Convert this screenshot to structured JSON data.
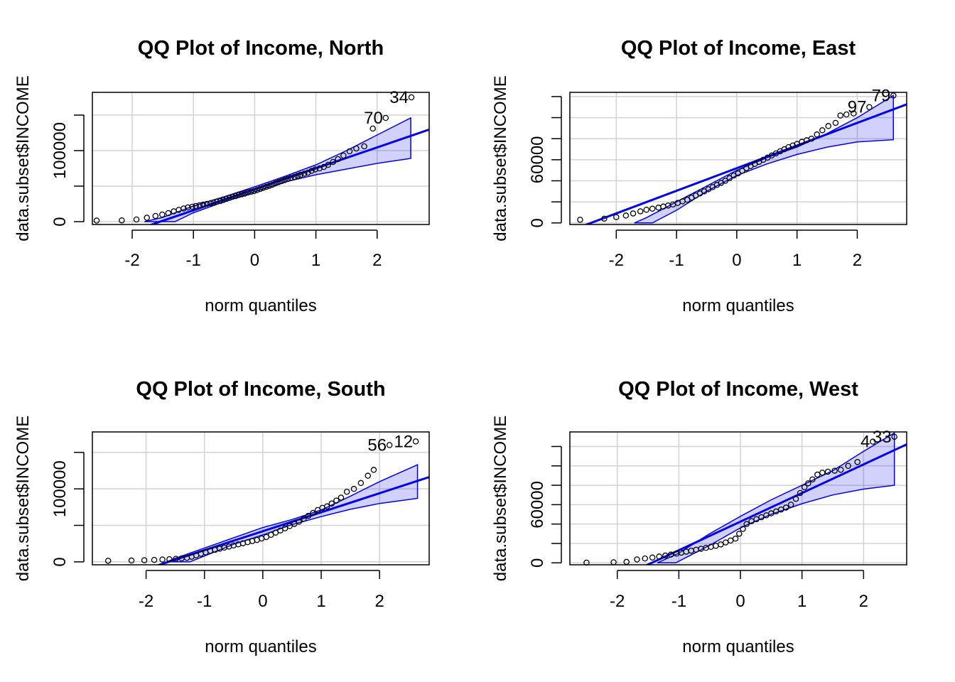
{
  "chart_data": [
    {
      "type": "scatter",
      "title": "QQ Plot of Income, North",
      "xlabel": "norm quantiles",
      "ylabel": "data.subset$INCOME",
      "xlim": [
        -2.65,
        2.85
      ],
      "ylim": [
        -4000,
        182000
      ],
      "xticks": [
        -2,
        -1,
        0,
        1,
        2
      ],
      "xtick_labels": [
        "-2",
        "-1",
        "0",
        "1",
        "2"
      ],
      "yticks": [
        0,
        50000,
        100000,
        150000
      ],
      "ytick_labels": [
        "0",
        "",
        "100000",
        ""
      ],
      "grid": true,
      "reference_line": {
        "intercept": 45500,
        "slope": 29500
      },
      "band": {
        "lower": [
          [
            -1.3,
            0
          ],
          [
            -1,
            12500
          ],
          [
            -0.5,
            28000
          ],
          [
            0,
            42000
          ],
          [
            0.5,
            56000
          ],
          [
            1,
            66000
          ],
          [
            1.5,
            74000
          ],
          [
            2,
            82000
          ],
          [
            2.55,
            89000
          ]
        ],
        "upper": [
          [
            -1.8,
            0
          ],
          [
            -1.5,
            6000
          ],
          [
            -1,
            22000
          ],
          [
            -0.5,
            35000
          ],
          [
            0,
            49000
          ],
          [
            0.5,
            64000
          ],
          [
            1,
            80000
          ],
          [
            1.5,
            100000
          ],
          [
            2,
            122000
          ],
          [
            2.55,
            146000
          ]
        ]
      },
      "points": [
        [
          -2.58,
          1500
        ],
        [
          -2.17,
          1800
        ],
        [
          -1.93,
          3000
        ],
        [
          -1.76,
          5500
        ],
        [
          -1.62,
          8000
        ],
        [
          -1.51,
          10000
        ],
        [
          -1.41,
          12000
        ],
        [
          -1.32,
          14500
        ],
        [
          -1.24,
          16500
        ],
        [
          -1.16,
          18500
        ],
        [
          -1.09,
          20000
        ],
        [
          -1.02,
          21000
        ],
        [
          -0.96,
          22000
        ],
        [
          -0.9,
          23000
        ],
        [
          -0.84,
          24000
        ],
        [
          -0.78,
          25000
        ],
        [
          -0.72,
          26000
        ],
        [
          -0.67,
          27000
        ],
        [
          -0.62,
          28000
        ],
        [
          -0.56,
          29000
        ],
        [
          -0.51,
          30500
        ],
        [
          -0.46,
          32000
        ],
        [
          -0.41,
          33500
        ],
        [
          -0.36,
          35000
        ],
        [
          -0.31,
          36000
        ],
        [
          -0.26,
          37500
        ],
        [
          -0.21,
          38500
        ],
        [
          -0.16,
          39500
        ],
        [
          -0.11,
          41000
        ],
        [
          -0.06,
          42000
        ],
        [
          -0.01,
          43000
        ],
        [
          0.04,
          44500
        ],
        [
          0.09,
          46000
        ],
        [
          0.14,
          47500
        ],
        [
          0.19,
          49000
        ],
        [
          0.24,
          50500
        ],
        [
          0.29,
          52000
        ],
        [
          0.34,
          54000
        ],
        [
          0.39,
          55500
        ],
        [
          0.44,
          57000
        ],
        [
          0.49,
          58500
        ],
        [
          0.54,
          60000
        ],
        [
          0.59,
          61500
        ],
        [
          0.65,
          63000
        ],
        [
          0.7,
          64500
        ],
        [
          0.75,
          66000
        ],
        [
          0.81,
          67500
        ],
        [
          0.87,
          69000
        ],
        [
          0.93,
          71500
        ],
        [
          0.99,
          73500
        ],
        [
          1.06,
          75000
        ],
        [
          1.13,
          77000
        ],
        [
          1.2,
          80000
        ],
        [
          1.28,
          84000
        ],
        [
          1.36,
          88000
        ],
        [
          1.45,
          93000
        ],
        [
          1.55,
          99000
        ],
        [
          1.66,
          103000
        ],
        [
          1.79,
          106000
        ],
        [
          1.93,
          131000
        ],
        [
          2.14,
          146000
        ],
        [
          2.56,
          175000
        ]
      ],
      "annotations": [
        {
          "label": "70",
          "x": 2.14,
          "y": 146000
        },
        {
          "label": "34",
          "x": 2.56,
          "y": 175000
        }
      ]
    },
    {
      "type": "scatter",
      "title": "QQ Plot of Income, East",
      "xlabel": "norm quantiles",
      "ylabel": "data.subset$INCOME",
      "xlim": [
        -2.77,
        2.82
      ],
      "ylim": [
        -1500,
        124000
      ],
      "xticks": [
        -2,
        -1,
        0,
        1,
        2
      ],
      "xtick_labels": [
        "-2",
        "-1",
        "0",
        "1",
        "2"
      ],
      "yticks": [
        0,
        20000,
        40000,
        60000,
        80000,
        100000,
        120000
      ],
      "ytick_labels": [
        "0",
        "",
        "",
        "60000",
        "",
        "",
        ""
      ],
      "grid": true,
      "reference_line": {
        "intercept": 52000,
        "slope": 21500
      },
      "band": {
        "lower": [
          [
            -1.4,
            0
          ],
          [
            -1,
            12000
          ],
          [
            -0.5,
            30000
          ],
          [
            0,
            45000
          ],
          [
            0.5,
            56000
          ],
          [
            1,
            65000
          ],
          [
            1.5,
            72000
          ],
          [
            2,
            77000
          ],
          [
            2.6,
            79000
          ]
        ],
        "upper": [
          [
            -1.7,
            0
          ],
          [
            -1.5,
            5000
          ],
          [
            -1,
            20000
          ],
          [
            -0.5,
            35000
          ],
          [
            0,
            50000
          ],
          [
            0.5,
            62000
          ],
          [
            1,
            72000
          ],
          [
            1.5,
            85000
          ],
          [
            2,
            100000
          ],
          [
            2.6,
            121000
          ]
        ]
      },
      "points": [
        [
          -2.6,
          3000
        ],
        [
          -2.2,
          4000
        ],
        [
          -2.0,
          5500
        ],
        [
          -1.84,
          7000
        ],
        [
          -1.72,
          9000
        ],
        [
          -1.6,
          11000
        ],
        [
          -1.5,
          12500
        ],
        [
          -1.4,
          13500
        ],
        [
          -1.3,
          14500
        ],
        [
          -1.22,
          15500
        ],
        [
          -1.14,
          16500
        ],
        [
          -1.06,
          17500
        ],
        [
          -0.98,
          19000
        ],
        [
          -0.9,
          20500
        ],
        [
          -0.82,
          22000
        ],
        [
          -0.75,
          24000
        ],
        [
          -0.68,
          26000
        ],
        [
          -0.61,
          28000
        ],
        [
          -0.54,
          30000
        ],
        [
          -0.47,
          32000
        ],
        [
          -0.4,
          34000
        ],
        [
          -0.33,
          36000
        ],
        [
          -0.26,
          38000
        ],
        [
          -0.19,
          40000
        ],
        [
          -0.12,
          42500
        ],
        [
          -0.05,
          45000
        ],
        [
          0.02,
          47000
        ],
        [
          0.09,
          49500
        ],
        [
          0.16,
          52000
        ],
        [
          0.23,
          54000
        ],
        [
          0.3,
          56000
        ],
        [
          0.37,
          58000
        ],
        [
          0.44,
          60000
        ],
        [
          0.51,
          62000
        ],
        [
          0.58,
          64000
        ],
        [
          0.65,
          66000
        ],
        [
          0.72,
          68000
        ],
        [
          0.79,
          70000
        ],
        [
          0.86,
          72000
        ],
        [
          0.93,
          73500
        ],
        [
          1.0,
          75000
        ],
        [
          1.08,
          77000
        ],
        [
          1.16,
          78500
        ],
        [
          1.24,
          80000
        ],
        [
          1.33,
          84000
        ],
        [
          1.42,
          88000
        ],
        [
          1.52,
          92000
        ],
        [
          1.64,
          95000
        ],
        [
          1.72,
          102000
        ],
        [
          1.82,
          103000
        ],
        [
          1.94,
          104000
        ],
        [
          2.2,
          110000
        ],
        [
          2.6,
          121000
        ]
      ],
      "annotations": [
        {
          "label": "97",
          "x": 2.2,
          "y": 110000
        },
        {
          "label": "79",
          "x": 2.6,
          "y": 121000
        }
      ]
    },
    {
      "type": "scatter",
      "title": "QQ Plot of Income, South",
      "xlabel": "norm quantiles",
      "ylabel": "data.subset$INCOME",
      "xlim": [
        -2.92,
        2.85
      ],
      "ylim": [
        -4000,
        178000
      ],
      "xticks": [
        -2,
        -1,
        0,
        1,
        2
      ],
      "xtick_labels": [
        "-2",
        "-1",
        "0",
        "1",
        "2"
      ],
      "yticks": [
        0,
        50000,
        100000,
        150000
      ],
      "ytick_labels": [
        "0",
        "",
        "100000",
        ""
      ],
      "grid": true,
      "reference_line": {
        "intercept": 42000,
        "slope": 26000
      },
      "band": {
        "lower": [
          [
            -1.25,
            0
          ],
          [
            -1,
            8000
          ],
          [
            -0.5,
            24000
          ],
          [
            0,
            37000
          ],
          [
            0.5,
            51000
          ],
          [
            1,
            62000
          ],
          [
            1.5,
            72000
          ],
          [
            2,
            80000
          ],
          [
            2.65,
            87000
          ]
        ],
        "upper": [
          [
            -1.65,
            0
          ],
          [
            -1.5,
            5000
          ],
          [
            -1,
            19000
          ],
          [
            -0.5,
            33000
          ],
          [
            0,
            47000
          ],
          [
            0.5,
            58000
          ],
          [
            1,
            71000
          ],
          [
            1.5,
            90000
          ],
          [
            2,
            110000
          ],
          [
            2.65,
            133000
          ]
        ]
      },
      "points": [
        [
          -2.65,
          1500
        ],
        [
          -2.25,
          1800
        ],
        [
          -2.03,
          2200
        ],
        [
          -1.86,
          2700
        ],
        [
          -1.72,
          3200
        ],
        [
          -1.6,
          3700
        ],
        [
          -1.49,
          4200
        ],
        [
          -1.39,
          4800
        ],
        [
          -1.3,
          5500
        ],
        [
          -1.22,
          7000
        ],
        [
          -1.14,
          9000
        ],
        [
          -1.06,
          11000
        ],
        [
          -0.98,
          13000
        ],
        [
          -0.9,
          15000
        ],
        [
          -0.82,
          16500
        ],
        [
          -0.74,
          18000
        ],
        [
          -0.66,
          19500
        ],
        [
          -0.58,
          21000
        ],
        [
          -0.5,
          22500
        ],
        [
          -0.42,
          24000
        ],
        [
          -0.34,
          25500
        ],
        [
          -0.26,
          27000
        ],
        [
          -0.18,
          28500
        ],
        [
          -0.1,
          30000
        ],
        [
          -0.02,
          32000
        ],
        [
          0.06,
          34000
        ],
        [
          0.14,
          37000
        ],
        [
          0.22,
          40000
        ],
        [
          0.3,
          43000
        ],
        [
          0.38,
          46000
        ],
        [
          0.46,
          49000
        ],
        [
          0.54,
          52000
        ],
        [
          0.62,
          55000
        ],
        [
          0.7,
          59000
        ],
        [
          0.78,
          63000
        ],
        [
          0.86,
          67000
        ],
        [
          0.94,
          71000
        ],
        [
          1.02,
          74000
        ],
        [
          1.1,
          76000
        ],
        [
          1.18,
          80000
        ],
        [
          1.26,
          84000
        ],
        [
          1.34,
          88000
        ],
        [
          1.44,
          96000
        ],
        [
          1.56,
          100000
        ],
        [
          1.68,
          108000
        ],
        [
          1.8,
          118000
        ],
        [
          1.9,
          126000
        ],
        [
          2.17,
          160000
        ],
        [
          2.62,
          165000
        ]
      ],
      "annotations": [
        {
          "label": "56",
          "x": 2.17,
          "y": 160000
        },
        {
          "label": "12",
          "x": 2.62,
          "y": 165000
        }
      ]
    },
    {
      "type": "scatter",
      "title": "QQ Plot of Income, West",
      "xlabel": "norm quantiles",
      "ylabel": "data.subset$INCOME",
      "xlim": [
        -2.77,
        2.7
      ],
      "ylim": [
        -2000,
        135000
      ],
      "xticks": [
        -2,
        -1,
        0,
        1,
        2
      ],
      "xtick_labels": [
        "-2",
        "-1",
        "0",
        "1",
        "2"
      ],
      "yticks": [
        0,
        20000,
        40000,
        60000,
        80000,
        100000,
        120000
      ],
      "ytick_labels": [
        "0",
        "",
        "",
        "60000",
        "",
        "",
        ""
      ],
      "grid": true,
      "reference_line": {
        "intercept": 42500,
        "slope": 29500
      },
      "band": {
        "lower": [
          [
            -1.05,
            0
          ],
          [
            -0.5,
            18000
          ],
          [
            0,
            36000
          ],
          [
            0.5,
            50000
          ],
          [
            1,
            61000
          ],
          [
            1.5,
            70000
          ],
          [
            2,
            76000
          ],
          [
            2.5,
            80000
          ]
        ],
        "upper": [
          [
            -1.35,
            0
          ],
          [
            -1,
            10000
          ],
          [
            -0.5,
            30000
          ],
          [
            0,
            48000
          ],
          [
            0.5,
            65000
          ],
          [
            1,
            80000
          ],
          [
            1.5,
            95000
          ],
          [
            2,
            115000
          ],
          [
            2.5,
            134000
          ]
        ]
      },
      "points": [
        [
          -2.5,
          200
        ],
        [
          -2.06,
          600
        ],
        [
          -1.85,
          1000
        ],
        [
          -1.68,
          3500
        ],
        [
          -1.55,
          4500
        ],
        [
          -1.43,
          5500
        ],
        [
          -1.32,
          6500
        ],
        [
          -1.22,
          7500
        ],
        [
          -1.13,
          8500
        ],
        [
          -1.04,
          9500
        ],
        [
          -0.96,
          10500
        ],
        [
          -0.88,
          11500
        ],
        [
          -0.8,
          12500
        ],
        [
          -0.72,
          13500
        ],
        [
          -0.64,
          14500
        ],
        [
          -0.56,
          15500
        ],
        [
          -0.48,
          16500
        ],
        [
          -0.4,
          17500
        ],
        [
          -0.32,
          19000
        ],
        [
          -0.24,
          21000
        ],
        [
          -0.16,
          23000
        ],
        [
          -0.08,
          25000
        ],
        [
          -0.02,
          30000
        ],
        [
          0.04,
          35000
        ],
        [
          0.1,
          40000
        ],
        [
          0.18,
          43000
        ],
        [
          0.26,
          45000
        ],
        [
          0.34,
          47000
        ],
        [
          0.42,
          49000
        ],
        [
          0.5,
          51000
        ],
        [
          0.58,
          53000
        ],
        [
          0.66,
          55000
        ],
        [
          0.74,
          57000
        ],
        [
          0.82,
          60000
        ],
        [
          0.9,
          66000
        ],
        [
          0.97,
          72000
        ],
        [
          1.04,
          78000
        ],
        [
          1.1,
          82000
        ],
        [
          1.17,
          86000
        ],
        [
          1.25,
          91000
        ],
        [
          1.33,
          93000
        ],
        [
          1.42,
          94000
        ],
        [
          1.53,
          95000
        ],
        [
          1.63,
          96000
        ],
        [
          1.75,
          100000
        ],
        [
          1.9,
          104000
        ],
        [
          2.15,
          125000
        ],
        [
          2.5,
          130000
        ]
      ],
      "annotations": [
        {
          "label": "4",
          "x": 2.15,
          "y": 125000
        },
        {
          "label": "33",
          "x": 2.5,
          "y": 130000
        }
      ]
    }
  ]
}
